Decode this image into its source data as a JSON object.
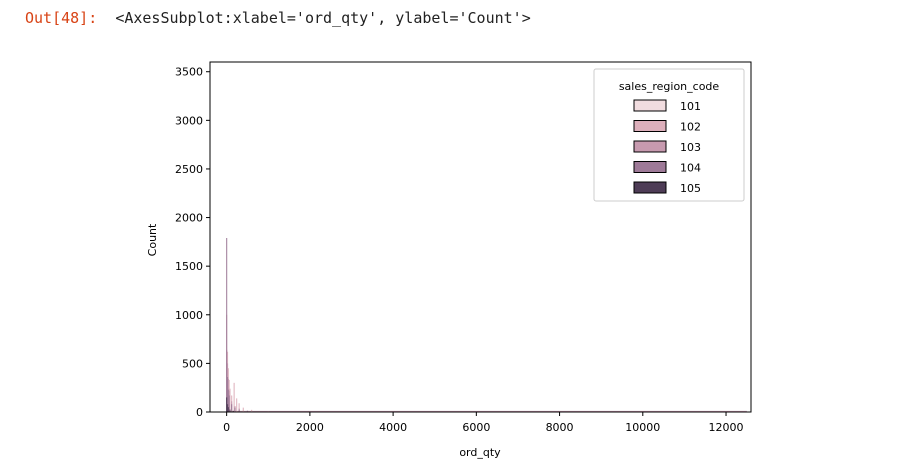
{
  "cell": {
    "prompt": "Out[48]:",
    "repr": "<AxesSubplot:xlabel='ord_qty', ylabel='Count'>"
  },
  "chart_data": {
    "type": "histogram",
    "xlabel": "ord_qty",
    "ylabel": "Count",
    "xlim": [
      -400,
      12600
    ],
    "ylim": [
      0,
      3600
    ],
    "x_ticks": [
      0,
      2000,
      4000,
      6000,
      8000,
      10000,
      12000
    ],
    "y_ticks": [
      0,
      500,
      1000,
      1500,
      2000,
      2500,
      3000,
      3500
    ],
    "legend": {
      "title": "sales_region_code",
      "placement": "top-right",
      "entries": [
        "101",
        "102",
        "103",
        "104",
        "105"
      ]
    },
    "series": [
      {
        "name": "101",
        "color": "#f1dcdf",
        "points": [
          [
            0,
            600
          ],
          [
            20,
            350
          ],
          [
            40,
            260
          ],
          [
            60,
            180
          ],
          [
            120,
            90
          ],
          [
            200,
            60
          ],
          [
            300,
            40
          ],
          [
            400,
            20
          ],
          [
            600,
            12
          ],
          [
            1000,
            6
          ]
        ]
      },
      {
        "name": "102",
        "color": "#ddafbb",
        "points": [
          [
            0,
            1000
          ],
          [
            20,
            620
          ],
          [
            40,
            450
          ],
          [
            60,
            330
          ],
          [
            80,
            240
          ],
          [
            120,
            170
          ],
          [
            180,
            300
          ],
          [
            240,
            140
          ],
          [
            300,
            90
          ],
          [
            400,
            45
          ],
          [
            600,
            22
          ],
          [
            1000,
            8
          ]
        ]
      },
      {
        "name": "103",
        "color": "#c79aaf",
        "points": [
          [
            0,
            640
          ],
          [
            20,
            500
          ],
          [
            40,
            340
          ],
          [
            60,
            220
          ],
          [
            120,
            110
          ],
          [
            200,
            60
          ],
          [
            300,
            35
          ],
          [
            500,
            14
          ],
          [
            800,
            6
          ]
        ]
      },
      {
        "name": "104",
        "color": "#9e7a98",
        "points": [
          [
            0,
            1790
          ],
          [
            20,
            360
          ],
          [
            40,
            230
          ],
          [
            60,
            170
          ],
          [
            120,
            80
          ],
          [
            200,
            45
          ],
          [
            300,
            25
          ],
          [
            500,
            12
          ],
          [
            900,
            5
          ]
        ]
      },
      {
        "name": "105",
        "color": "#4e3c56",
        "points": [
          [
            0,
            150
          ],
          [
            20,
            80
          ],
          [
            40,
            50
          ],
          [
            80,
            25
          ],
          [
            160,
            12
          ],
          [
            300,
            6
          ]
        ]
      }
    ],
    "tail_x_max": 12500,
    "grid": false
  }
}
